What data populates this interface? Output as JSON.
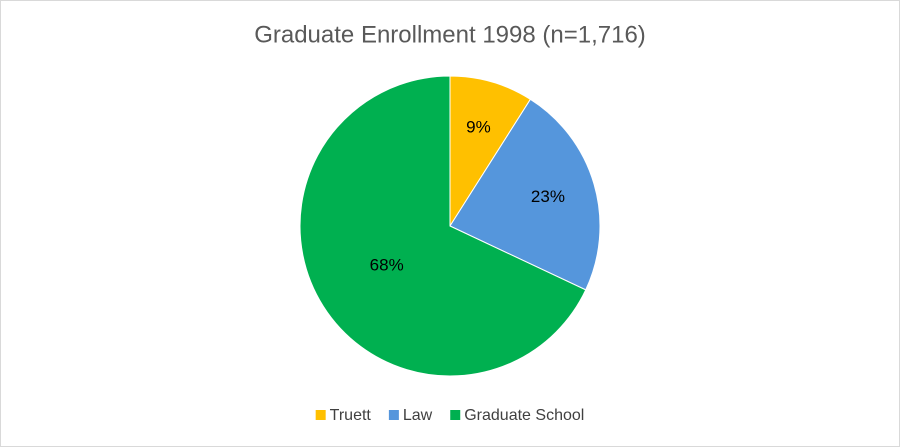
{
  "chart_data": {
    "type": "pie",
    "title": "Graduate Enrollment 1998 (n=1,716)",
    "categories": [
      "Truett",
      "Law",
      "Graduate School"
    ],
    "values": [
      9,
      23,
      68
    ],
    "value_labels": [
      "9%",
      "23%",
      "68%"
    ],
    "colors": [
      "#ffc000",
      "#5596dc",
      "#00b050"
    ],
    "legend": "bottom"
  }
}
